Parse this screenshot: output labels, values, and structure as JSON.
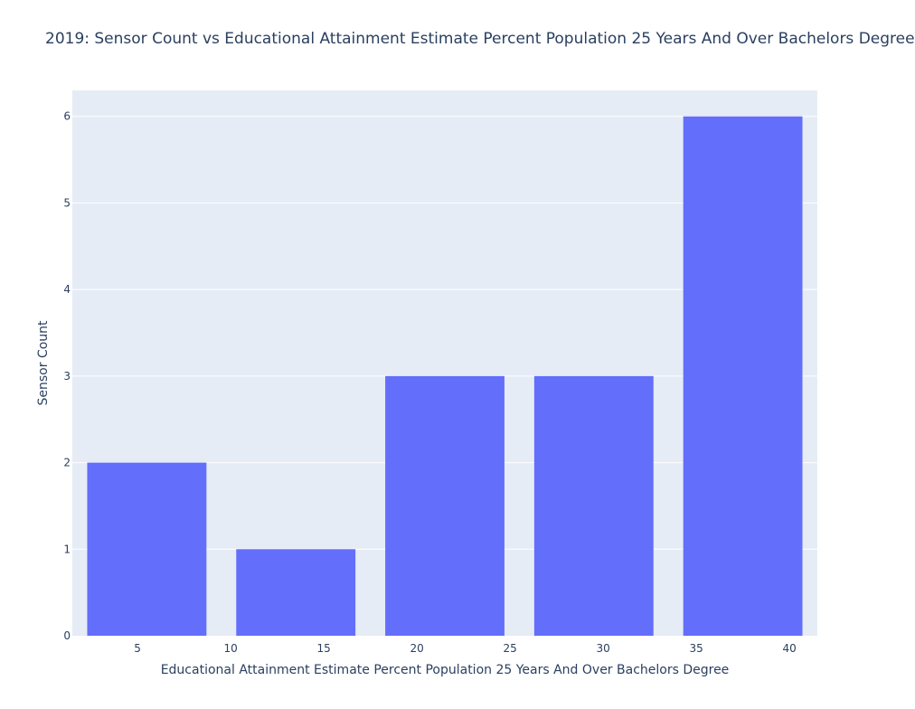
{
  "chart_data": {
    "type": "bar",
    "title": "2019: Sensor Count vs Educational Attainment Estimate Percent Population 25 Years And Over Bachelors Degree",
    "xlabel": "Educational Attainment Estimate Percent Population 25 Years And Over Bachelors Degree",
    "ylabel": "Sensor Count",
    "xlim": [
      1.5,
      41.5
    ],
    "ylim": [
      0,
      6.3
    ],
    "xticks": [
      5,
      10,
      15,
      20,
      25,
      30,
      35,
      40
    ],
    "yticks": [
      0,
      1,
      2,
      3,
      4,
      5,
      6
    ],
    "grid": true,
    "bar_color": "#636efa",
    "plot_bg": "#e5ecf6",
    "bars": [
      {
        "x0": 2.3,
        "x1": 8.7,
        "value": 2
      },
      {
        "x0": 10.3,
        "x1": 16.7,
        "value": 1
      },
      {
        "x0": 18.3,
        "x1": 24.7,
        "value": 3
      },
      {
        "x0": 26.3,
        "x1": 32.7,
        "value": 3
      },
      {
        "x0": 34.3,
        "x1": 40.7,
        "value": 6
      }
    ]
  }
}
